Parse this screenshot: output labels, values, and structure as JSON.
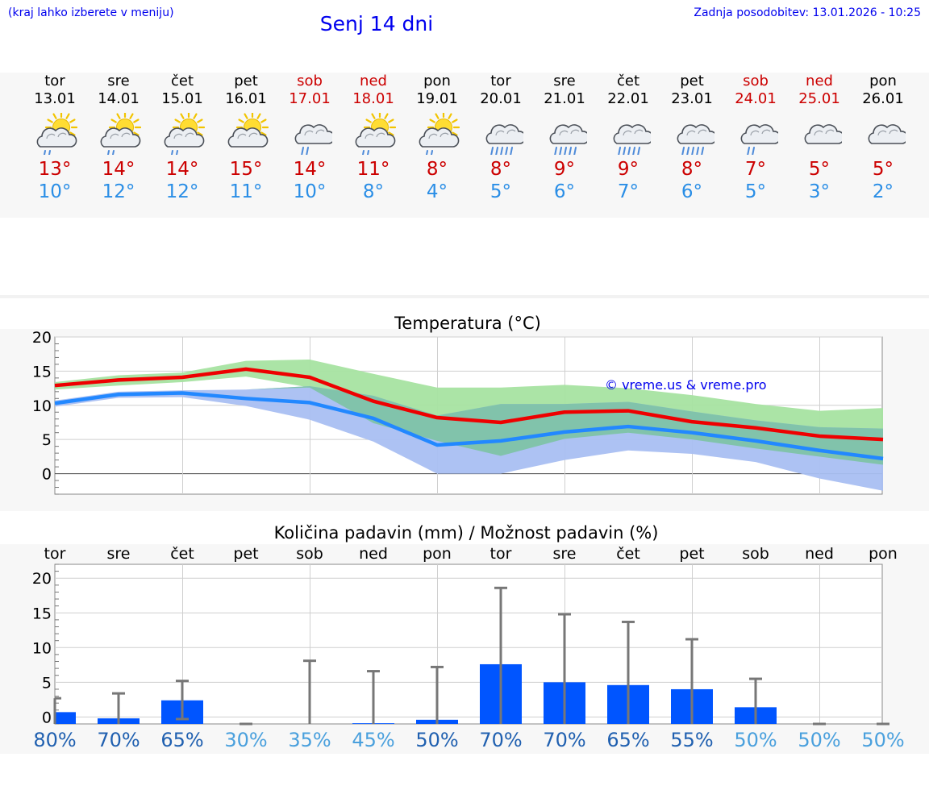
{
  "header": {
    "hint": "(kraj lahko izberete v meniju)",
    "title": "Senj 14 dni",
    "updated": "Zadnja posodobitev: 13.01.2026 - 10:25"
  },
  "days": [
    {
      "name": "tor",
      "date": "13.01",
      "icon": "sun-cloud-rain-icon",
      "max": "13°",
      "min": "10°",
      "weekend": false
    },
    {
      "name": "sre",
      "date": "14.01",
      "icon": "sun-cloud-rain-icon",
      "max": "14°",
      "min": "12°",
      "weekend": false
    },
    {
      "name": "čet",
      "date": "15.01",
      "icon": "sun-cloud-rain-icon",
      "max": "14°",
      "min": "12°",
      "weekend": false
    },
    {
      "name": "pet",
      "date": "16.01",
      "icon": "sun-cloud-icon",
      "max": "15°",
      "min": "11°",
      "weekend": false
    },
    {
      "name": "sob",
      "date": "17.01",
      "icon": "cloud-rain-icon",
      "max": "14°",
      "min": "10°",
      "weekend": true
    },
    {
      "name": "ned",
      "date": "18.01",
      "icon": "sun-cloud-rain-icon",
      "max": "11°",
      "min": "8°",
      "weekend": true
    },
    {
      "name": "pon",
      "date": "19.01",
      "icon": "sun-cloud-rain-icon",
      "max": "8°",
      "min": "4°",
      "weekend": false
    },
    {
      "name": "tor",
      "date": "20.01",
      "icon": "cloud-heavy-rain-icon",
      "max": "8°",
      "min": "5°",
      "weekend": false
    },
    {
      "name": "sre",
      "date": "21.01",
      "icon": "cloud-heavy-rain-icon",
      "max": "9°",
      "min": "6°",
      "weekend": false
    },
    {
      "name": "čet",
      "date": "22.01",
      "icon": "cloud-heavy-rain-icon",
      "max": "9°",
      "min": "7°",
      "weekend": false
    },
    {
      "name": "pet",
      "date": "23.01",
      "icon": "cloud-heavy-rain-icon",
      "max": "8°",
      "min": "6°",
      "weekend": false
    },
    {
      "name": "sob",
      "date": "24.01",
      "icon": "cloud-rain-icon",
      "max": "7°",
      "min": "5°",
      "weekend": true
    },
    {
      "name": "ned",
      "date": "25.01",
      "icon": "cloud-icon",
      "max": "5°",
      "min": "3°",
      "weekend": true
    },
    {
      "name": "pon",
      "date": "26.01",
      "icon": "cloud-icon",
      "max": "5°",
      "min": "2°",
      "weekend": false
    }
  ],
  "colors": {
    "max_line": "#ee0000",
    "min_line": "#2288ff",
    "max_band": "#a6e3a1",
    "min_band": "#a9bff2",
    "overlap_band": "#7cc3a3",
    "bar": "#0055ff",
    "whisker": "#777777",
    "pct_dark": "#2060b0",
    "pct_light": "#4aa0dd",
    "text_blue": "#0000ee"
  },
  "chart_data": [
    {
      "type": "line",
      "title": "Temperatura (°C)",
      "ylim": [
        -3,
        20
      ],
      "yticks": [
        0,
        5,
        10,
        15,
        20
      ],
      "watermark": "© vreme.us & vreme.pro",
      "x": [
        "13.01",
        "14.01",
        "15.01",
        "16.01",
        "17.01",
        "18.01",
        "19.01",
        "20.01",
        "21.01",
        "22.01",
        "23.01",
        "24.01",
        "25.01",
        "26.01"
      ],
      "series": [
        {
          "name": "max",
          "values": [
            12.9,
            13.7,
            14.1,
            15.3,
            14.1,
            10.6,
            8.2,
            7.5,
            9.0,
            9.2,
            7.6,
            6.7,
            5.5,
            5.0
          ]
        },
        {
          "name": "min",
          "values": [
            10.3,
            11.6,
            11.8,
            11.0,
            10.4,
            8.1,
            4.2,
            4.8,
            6.1,
            6.9,
            6.0,
            4.8,
            3.4,
            2.2
          ]
        },
        {
          "name": "max_band_upper",
          "values": [
            13.4,
            14.4,
            14.8,
            16.5,
            16.7,
            14.6,
            12.6,
            12.6,
            13.0,
            12.5,
            11.5,
            10.2,
            9.2,
            9.6
          ]
        },
        {
          "name": "max_band_lower",
          "values": [
            12.3,
            12.9,
            13.4,
            14.2,
            12.6,
            7.4,
            4.8,
            2.6,
            5.1,
            6.0,
            5.0,
            3.7,
            2.5,
            1.3
          ]
        },
        {
          "name": "min_band_upper",
          "values": [
            10.7,
            12.0,
            12.2,
            12.3,
            12.8,
            11.4,
            8.5,
            10.2,
            10.2,
            10.5,
            9.1,
            7.8,
            6.8,
            6.6
          ]
        },
        {
          "name": "min_band_lower",
          "values": [
            9.8,
            11.1,
            11.2,
            9.9,
            7.9,
            4.7,
            0.0,
            0.0,
            2.0,
            3.4,
            2.9,
            1.7,
            -0.7,
            -2.5
          ]
        }
      ]
    },
    {
      "type": "bar",
      "title": "Količina padavin (mm) / Možnost padavin (%)",
      "ylim": [
        -1,
        22
      ],
      "yticks": [
        0,
        5,
        10,
        15,
        20
      ],
      "categories": [
        "tor",
        "sre",
        "čet",
        "pet",
        "sob",
        "ned",
        "pon",
        "tor",
        "sre",
        "čet",
        "pet",
        "sob",
        "ned",
        "pon"
      ],
      "values": [
        1.7,
        0.8,
        3.4,
        0.0,
        0.0,
        0.1,
        0.6,
        8.6,
        6.0,
        5.6,
        5.0,
        2.4,
        0.0,
        0.0
      ],
      "error_high": [
        3.7,
        4.4,
        6.2,
        0.0,
        9.1,
        7.6,
        8.2,
        19.6,
        15.8,
        14.7,
        12.2,
        6.5,
        0.0,
        0.0
      ],
      "error_low": [
        0,
        0,
        0.7,
        0,
        0,
        0,
        0,
        0,
        0,
        0,
        0,
        0,
        0,
        0
      ],
      "probability": [
        "80%",
        "70%",
        "65%",
        "30%",
        "35%",
        "45%",
        "50%",
        "70%",
        "70%",
        "65%",
        "55%",
        "50%",
        "50%",
        "50%"
      ],
      "probability_dark": [
        true,
        true,
        true,
        false,
        false,
        false,
        true,
        true,
        true,
        true,
        true,
        false,
        false,
        false
      ]
    }
  ]
}
